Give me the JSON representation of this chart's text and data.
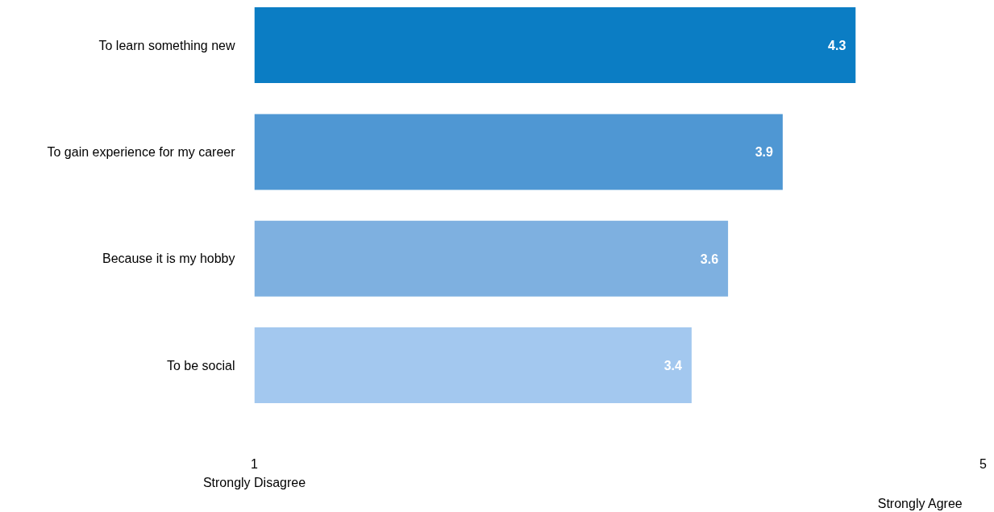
{
  "chart_data": {
    "type": "bar",
    "orientation": "horizontal",
    "categories": [
      "To learn something new",
      "To gain experience for my career",
      "Because it is my hobby",
      "To be social"
    ],
    "values": [
      4.3,
      3.9,
      3.6,
      3.4
    ],
    "colors": [
      "#0b7dc4",
      "#4f97d3",
      "#7eb0e0",
      "#a3c8ef"
    ],
    "xlim": [
      1,
      5
    ],
    "xticks": [
      1,
      5
    ],
    "data_labels": true,
    "grid": false,
    "annotations": [
      "Strongly Disagree",
      "Strongly Agree"
    ]
  }
}
